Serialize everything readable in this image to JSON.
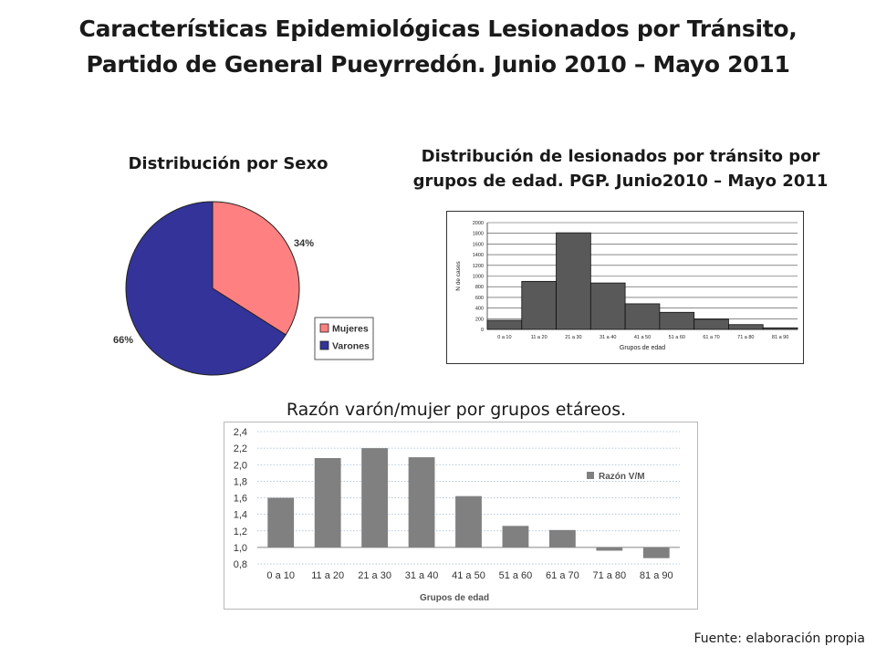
{
  "title": {
    "line1": "Características Epidemiológicas Lesionados por Tránsito,",
    "line2": "Partido de General Pueyrredón. Junio 2010 – Mayo 2011"
  },
  "source": "Fuente: elaboración propia",
  "chart_data": [
    {
      "type": "pie",
      "heading": "Distribución por Sexo",
      "slices": [
        {
          "name": "Mujeres",
          "value": 34,
          "label": "34%",
          "color": "#FF8080"
        },
        {
          "name": "Varones",
          "value": 66,
          "label": "66%",
          "color": "#333399"
        }
      ],
      "legend": "right"
    },
    {
      "type": "bar",
      "heading_line1": "Distribución de lesionados por tránsito por",
      "heading_line2": "grupos de edad. PGP. Junio2010 – Mayo 2011",
      "categories": [
        "0 a 10",
        "11 a 20",
        "21 a 30",
        "31 a 40",
        "41 a 50",
        "51 a 60",
        "61 a 70",
        "71 a 80",
        "81 a 90"
      ],
      "values": [
        170,
        900,
        1810,
        870,
        480,
        320,
        190,
        90,
        30
      ],
      "xlabel": "Grupos de edad",
      "ylabel": "N de casos",
      "ylim": [
        0,
        2000
      ],
      "yticks": [
        "0",
        "200",
        "400",
        "600",
        "800",
        "1000",
        "1200",
        "1400",
        "1600",
        "1800",
        "2000"
      ],
      "grid": true,
      "bar_color": "#595959"
    },
    {
      "type": "bar",
      "heading": "Razón varón/mujer por grupos etáreos.",
      "categories": [
        "0 a 10",
        "11 a 20",
        "21 a 30",
        "31 a 40",
        "41 a 50",
        "51 a 60",
        "61 a 70",
        "71 a 80",
        "81 a 90"
      ],
      "series": [
        {
          "name": "Razón V/M",
          "values": [
            1.6,
            2.08,
            2.2,
            2.09,
            1.62,
            1.26,
            1.21,
            0.96,
            0.87
          ]
        }
      ],
      "baseline": 1.0,
      "xlabel": "Grupos de edad",
      "ylim": [
        0.8,
        2.4
      ],
      "yticks": [
        "0,8",
        "1,0",
        "1,2",
        "1,4",
        "1,6",
        "1,8",
        "2,0",
        "2,2",
        "2,4"
      ],
      "grid": true,
      "legend": "right",
      "bar_color": "#808080"
    }
  ]
}
